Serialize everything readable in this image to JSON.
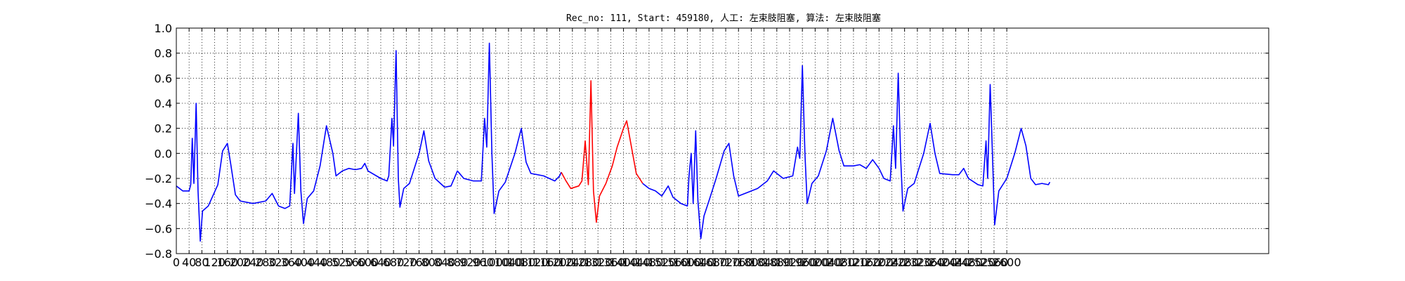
{
  "chart_data": {
    "type": "line",
    "title": "Rec_no: 111, Start: 459180, 人工: 左束肢阻塞, 算法: 左束肢阻塞",
    "xlabel": "",
    "ylabel": "",
    "xlim": [
      0,
      3420
    ],
    "ylim": [
      -0.8,
      1.0
    ],
    "grid": true,
    "xticks": [
      0,
      40,
      80,
      120,
      160,
      200,
      240,
      280,
      320,
      360,
      400,
      440,
      480,
      520,
      560,
      600,
      640,
      680,
      720,
      760,
      800,
      840,
      880,
      920,
      960,
      1000,
      1040,
      1080,
      1120,
      1160,
      1200,
      1240,
      1280,
      1320,
      1360,
      1400,
      1440,
      1480,
      1520,
      1560,
      1600,
      1640,
      1680,
      1720,
      1760,
      1800,
      1840,
      1880,
      1920,
      1960,
      2000,
      2040,
      2080,
      2120,
      2160,
      2200,
      2240,
      2280,
      2320,
      2360,
      2400,
      2440,
      2480,
      2520,
      2560,
      2600
    ],
    "yticks": [
      -0.8,
      -0.6,
      -0.4,
      -0.2,
      0.0,
      0.2,
      0.4,
      0.6,
      0.8,
      1.0
    ],
    "ytick_labels": [
      "−0.8",
      "−0.6",
      "−0.4",
      "−0.2",
      "0.0",
      "0.2",
      "0.4",
      "0.6",
      "0.8",
      "1.0"
    ],
    "series": [
      {
        "name": "ecg",
        "color": "#0000ff",
        "points": [
          [
            0,
            -0.26
          ],
          [
            20,
            -0.3
          ],
          [
            40,
            -0.3
          ],
          [
            45,
            -0.25
          ],
          [
            50,
            0.12
          ],
          [
            55,
            -0.24
          ],
          [
            62,
            0.4
          ],
          [
            68,
            -0.3
          ],
          [
            75,
            -0.7
          ],
          [
            82,
            -0.46
          ],
          [
            100,
            -0.42
          ],
          [
            130,
            -0.25
          ],
          [
            145,
            0.02
          ],
          [
            160,
            0.08
          ],
          [
            170,
            -0.08
          ],
          [
            185,
            -0.33
          ],
          [
            200,
            -0.38
          ],
          [
            240,
            -0.4
          ],
          [
            280,
            -0.38
          ],
          [
            300,
            -0.32
          ],
          [
            320,
            -0.42
          ],
          [
            340,
            -0.44
          ],
          [
            355,
            -0.42
          ],
          [
            365,
            0.08
          ],
          [
            370,
            -0.32
          ],
          [
            382,
            0.32
          ],
          [
            390,
            -0.3
          ],
          [
            398,
            -0.56
          ],
          [
            410,
            -0.36
          ],
          [
            430,
            -0.3
          ],
          [
            450,
            -0.1
          ],
          [
            470,
            0.22
          ],
          [
            490,
            0.0
          ],
          [
            500,
            -0.18
          ],
          [
            520,
            -0.14
          ],
          [
            540,
            -0.12
          ],
          [
            560,
            -0.13
          ],
          [
            580,
            -0.12
          ],
          [
            590,
            -0.08
          ],
          [
            600,
            -0.14
          ],
          [
            640,
            -0.2
          ],
          [
            660,
            -0.22
          ],
          [
            665,
            -0.18
          ],
          [
            675,
            0.28
          ],
          [
            680,
            0.06
          ],
          [
            688,
            0.82
          ],
          [
            695,
            -0.2
          ],
          [
            700,
            -0.43
          ],
          [
            712,
            -0.28
          ],
          [
            730,
            -0.24
          ],
          [
            760,
            0.0
          ],
          [
            775,
            0.18
          ],
          [
            790,
            -0.06
          ],
          [
            810,
            -0.2
          ],
          [
            840,
            -0.27
          ],
          [
            860,
            -0.26
          ],
          [
            880,
            -0.14
          ],
          [
            900,
            -0.2
          ],
          [
            930,
            -0.22
          ],
          [
            955,
            -0.22
          ],
          [
            965,
            0.28
          ],
          [
            972,
            0.05
          ],
          [
            980,
            0.88
          ],
          [
            988,
            0.0
          ],
          [
            995,
            -0.48
          ],
          [
            1010,
            -0.3
          ],
          [
            1030,
            -0.23
          ],
          [
            1060,
            0.0
          ],
          [
            1080,
            0.2
          ],
          [
            1095,
            -0.07
          ],
          [
            1110,
            -0.16
          ],
          [
            1150,
            -0.18
          ],
          [
            1185,
            -0.22
          ],
          [
            1200,
            -0.18
          ],
          [
            1205,
            -0.15
          ]
        ]
      },
      {
        "name": "highlight",
        "color": "#ff0000",
        "points": [
          [
            1205,
            -0.15
          ],
          [
            1220,
            -0.22
          ],
          [
            1235,
            -0.28
          ],
          [
            1260,
            -0.26
          ],
          [
            1270,
            -0.22
          ],
          [
            1280,
            0.1
          ],
          [
            1290,
            -0.25
          ],
          [
            1298,
            0.58
          ],
          [
            1306,
            -0.3
          ],
          [
            1315,
            -0.55
          ],
          [
            1325,
            -0.34
          ],
          [
            1345,
            -0.24
          ],
          [
            1365,
            -0.1
          ],
          [
            1380,
            0.05
          ],
          [
            1400,
            0.2
          ],
          [
            1410,
            0.26
          ],
          [
            1425,
            0.05
          ],
          [
            1440,
            -0.16
          ],
          [
            1455,
            -0.22
          ],
          [
            1460,
            -0.24
          ]
        ]
      },
      {
        "name": "ecg-continued",
        "color": "#0000ff",
        "points": [
          [
            1460,
            -0.24
          ],
          [
            1480,
            -0.28
          ],
          [
            1500,
            -0.3
          ],
          [
            1520,
            -0.34
          ],
          [
            1540,
            -0.26
          ],
          [
            1555,
            -0.35
          ],
          [
            1580,
            -0.4
          ],
          [
            1600,
            -0.42
          ],
          [
            1605,
            -0.18
          ],
          [
            1612,
            0.0
          ],
          [
            1618,
            -0.4
          ],
          [
            1626,
            0.18
          ],
          [
            1633,
            -0.38
          ],
          [
            1642,
            -0.68
          ],
          [
            1652,
            -0.5
          ],
          [
            1670,
            -0.36
          ],
          [
            1690,
            -0.2
          ],
          [
            1715,
            0.02
          ],
          [
            1730,
            0.08
          ],
          [
            1745,
            -0.18
          ],
          [
            1760,
            -0.34
          ],
          [
            1790,
            -0.31
          ],
          [
            1820,
            -0.28
          ],
          [
            1850,
            -0.22
          ],
          [
            1870,
            -0.14
          ],
          [
            1900,
            -0.2
          ],
          [
            1930,
            -0.18
          ],
          [
            1945,
            0.05
          ],
          [
            1952,
            -0.04
          ],
          [
            1960,
            0.7
          ],
          [
            1968,
            0.0
          ],
          [
            1975,
            -0.4
          ],
          [
            1990,
            -0.24
          ],
          [
            2010,
            -0.18
          ],
          [
            2035,
            0.02
          ],
          [
            2055,
            0.28
          ],
          [
            2075,
            0.02
          ],
          [
            2090,
            -0.1
          ],
          [
            2120,
            -0.1
          ],
          [
            2140,
            -0.09
          ],
          [
            2160,
            -0.12
          ],
          [
            2180,
            -0.05
          ],
          [
            2200,
            -0.12
          ],
          [
            2215,
            -0.2
          ],
          [
            2235,
            -0.22
          ],
          [
            2245,
            0.22
          ],
          [
            2252,
            -0.12
          ],
          [
            2260,
            0.64
          ],
          [
            2268,
            -0.05
          ],
          [
            2275,
            -0.46
          ],
          [
            2290,
            -0.28
          ],
          [
            2310,
            -0.24
          ],
          [
            2340,
            0.0
          ],
          [
            2360,
            0.24
          ],
          [
            2375,
            0.0
          ],
          [
            2390,
            -0.16
          ],
          [
            2430,
            -0.17
          ],
          [
            2450,
            -0.17
          ],
          [
            2465,
            -0.12
          ],
          [
            2480,
            -0.2
          ],
          [
            2510,
            -0.25
          ],
          [
            2525,
            -0.26
          ],
          [
            2535,
            0.1
          ],
          [
            2540,
            -0.2
          ],
          [
            2548,
            0.55
          ],
          [
            2555,
            0.0
          ],
          [
            2562,
            -0.57
          ],
          [
            2575,
            -0.3
          ],
          [
            2600,
            -0.2
          ],
          [
            2625,
            0.0
          ],
          [
            2645,
            0.2
          ],
          [
            2660,
            0.06
          ],
          [
            2675,
            -0.2
          ],
          [
            2690,
            -0.25
          ],
          [
            2710,
            -0.24
          ],
          [
            2730,
            -0.25
          ],
          [
            2735,
            -0.23
          ]
        ]
      }
    ]
  }
}
